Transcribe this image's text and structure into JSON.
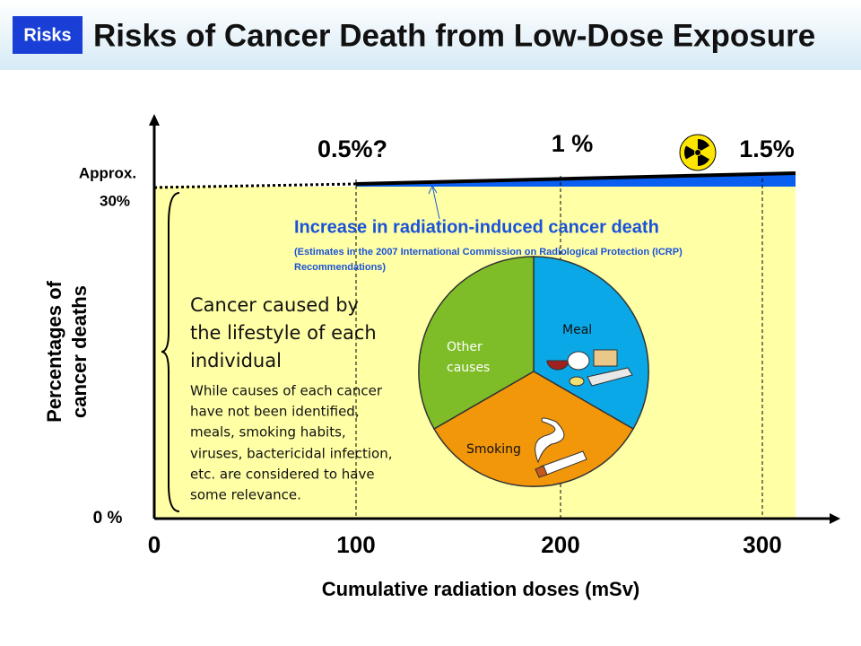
{
  "header": {
    "badge": "Risks",
    "title": "Risks of Cancer Death from Low-Dose Exposure"
  },
  "axes": {
    "y_label": [
      "Percentages of",
      "cancer deaths"
    ],
    "y_top": [
      "Approx.",
      "30%"
    ],
    "y_bottom": "0 %",
    "x_ticks": [
      "0",
      "100",
      "200",
      "300"
    ],
    "x_label": "Cumulative radiation doses (mSv)"
  },
  "point_labels": [
    "0.5%?",
    "1 %",
    "1.5%"
  ],
  "increase": {
    "title": "Increase in radiation-induced cancer death",
    "note": [
      "(Estimates in the 2007 International Commission on Radiological Protection (ICRP)",
      "Recommendations)"
    ]
  },
  "lifestyle": {
    "title": [
      "Cancer caused by",
      "the lifestyle of each",
      "individual"
    ],
    "text": [
      "While causes of each cancer",
      "have not been identified,",
      "meals, smoking habits,",
      "viruses, bactericidal infection,",
      "etc. are considered to have",
      "some relevance."
    ]
  },
  "pie": {
    "labels": [
      [
        "Other",
        "causes"
      ],
      [
        "Meal"
      ],
      [
        "Smoking"
      ]
    ]
  }
}
